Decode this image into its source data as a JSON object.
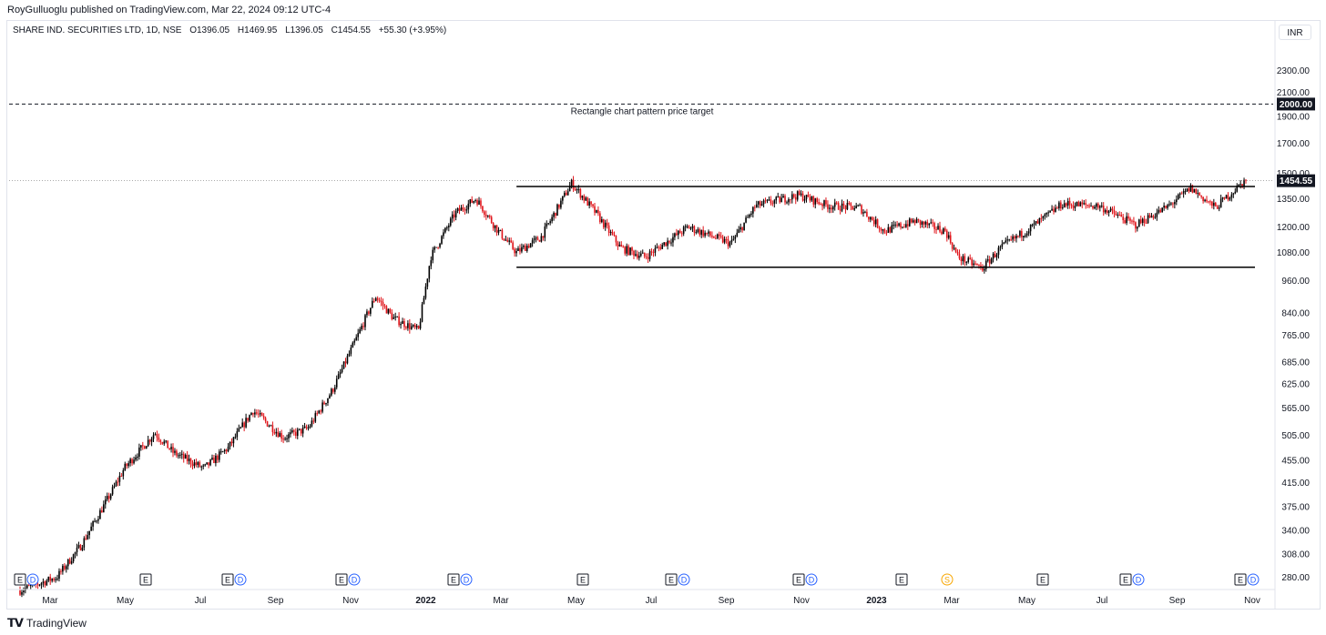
{
  "header": {
    "published": "RoyGulluoglu published on TradingView.com, Mar 22, 2024 09:12 UTC-4"
  },
  "legend": {
    "symbol": "SHARE IND. SECURITIES LTD, 1D, NSE",
    "open": "O1396.05",
    "high": "H1469.95",
    "low": "L1396.05",
    "close": "C1454.55",
    "change": "+55.30 (+3.95%)"
  },
  "currency": "INR",
  "footer": {
    "brand": "TradingView"
  },
  "colors": {
    "up": "#000000",
    "down": "#e0151b",
    "event_e": "#131722",
    "event_d": "#2962ff",
    "event_s": "#f7a600"
  },
  "chart_data": {
    "type": "candlestick",
    "y_scale": "log",
    "ylim": [
      264,
      2600
    ],
    "y_ticks": [
      "2300.00",
      "2100.00",
      "1900.00",
      "1700.00",
      "1500.00",
      "1350.00",
      "1200.00",
      "1080.00",
      "960.00",
      "840.00",
      "765.00",
      "685.00",
      "625.00",
      "565.00",
      "505.00",
      "455.00",
      "415.00",
      "375.00",
      "340.00",
      "308.00",
      "280.00"
    ],
    "x_ticks": [
      {
        "label": "Mar",
        "bold": false
      },
      {
        "label": "May",
        "bold": false
      },
      {
        "label": "Jul",
        "bold": false
      },
      {
        "label": "Sep",
        "bold": false
      },
      {
        "label": "Nov",
        "bold": false
      },
      {
        "label": "2022",
        "bold": true
      },
      {
        "label": "Mar",
        "bold": false
      },
      {
        "label": "May",
        "bold": false
      },
      {
        "label": "Jul",
        "bold": false
      },
      {
        "label": "Sep",
        "bold": false
      },
      {
        "label": "Nov",
        "bold": false
      },
      {
        "label": "2023",
        "bold": true
      },
      {
        "label": "Mar",
        "bold": false
      },
      {
        "label": "May",
        "bold": false
      },
      {
        "label": "Jul",
        "bold": false
      },
      {
        "label": "Sep",
        "bold": false
      },
      {
        "label": "Nov",
        "bold": false
      }
    ],
    "target": {
      "price": 2000,
      "label": "2000.00",
      "text": "Rectangle chart pattern price target"
    },
    "last_price": {
      "price": 1454.55,
      "label": "1454.55"
    },
    "rectangle": {
      "top": 1420,
      "bottom": 1015
    },
    "events": [
      [
        "E",
        "D"
      ],
      [
        "E"
      ],
      [
        "E",
        "D"
      ],
      [
        "E",
        "D"
      ],
      [
        "E",
        "D"
      ],
      [
        "E"
      ],
      [
        "E",
        "D"
      ],
      [
        "E",
        "D"
      ],
      [
        "E"
      ],
      [
        "S"
      ],
      [
        "E"
      ],
      [
        "E",
        "D"
      ],
      [
        "E",
        "D"
      ]
    ],
    "price_path": [
      {
        "t": 0.0,
        "p": 265
      },
      {
        "t": 0.03,
        "p": 280
      },
      {
        "t": 0.05,
        "p": 320
      },
      {
        "t": 0.075,
        "p": 400
      },
      {
        "t": 0.085,
        "p": 440
      },
      {
        "t": 0.11,
        "p": 510
      },
      {
        "t": 0.125,
        "p": 470
      },
      {
        "t": 0.15,
        "p": 440
      },
      {
        "t": 0.17,
        "p": 480
      },
      {
        "t": 0.19,
        "p": 560
      },
      {
        "t": 0.215,
        "p": 500
      },
      {
        "t": 0.235,
        "p": 520
      },
      {
        "t": 0.255,
        "p": 610
      },
      {
        "t": 0.275,
        "p": 760
      },
      {
        "t": 0.29,
        "p": 900
      },
      {
        "t": 0.305,
        "p": 820
      },
      {
        "t": 0.325,
        "p": 780
      },
      {
        "t": 0.335,
        "p": 1060
      },
      {
        "t": 0.355,
        "p": 1270
      },
      {
        "t": 0.372,
        "p": 1350
      },
      {
        "t": 0.39,
        "p": 1180
      },
      {
        "t": 0.405,
        "p": 1080
      },
      {
        "t": 0.425,
        "p": 1150
      },
      {
        "t": 0.45,
        "p": 1440
      },
      {
        "t": 0.47,
        "p": 1270
      },
      {
        "t": 0.49,
        "p": 1100
      },
      {
        "t": 0.51,
        "p": 1060
      },
      {
        "t": 0.545,
        "p": 1200
      },
      {
        "t": 0.58,
        "p": 1120
      },
      {
        "t": 0.6,
        "p": 1310
      },
      {
        "t": 0.635,
        "p": 1370
      },
      {
        "t": 0.66,
        "p": 1310
      },
      {
        "t": 0.685,
        "p": 1300
      },
      {
        "t": 0.705,
        "p": 1180
      },
      {
        "t": 0.73,
        "p": 1230
      },
      {
        "t": 0.755,
        "p": 1180
      },
      {
        "t": 0.765,
        "p": 1060
      },
      {
        "t": 0.785,
        "p": 1010
      },
      {
        "t": 0.8,
        "p": 1100
      },
      {
        "t": 0.83,
        "p": 1220
      },
      {
        "t": 0.85,
        "p": 1320
      },
      {
        "t": 0.88,
        "p": 1310
      },
      {
        "t": 0.91,
        "p": 1210
      },
      {
        "t": 0.935,
        "p": 1300
      },
      {
        "t": 0.955,
        "p": 1410
      },
      {
        "t": 0.975,
        "p": 1300
      },
      {
        "t": 1.0,
        "p": 1460
      }
    ]
  }
}
